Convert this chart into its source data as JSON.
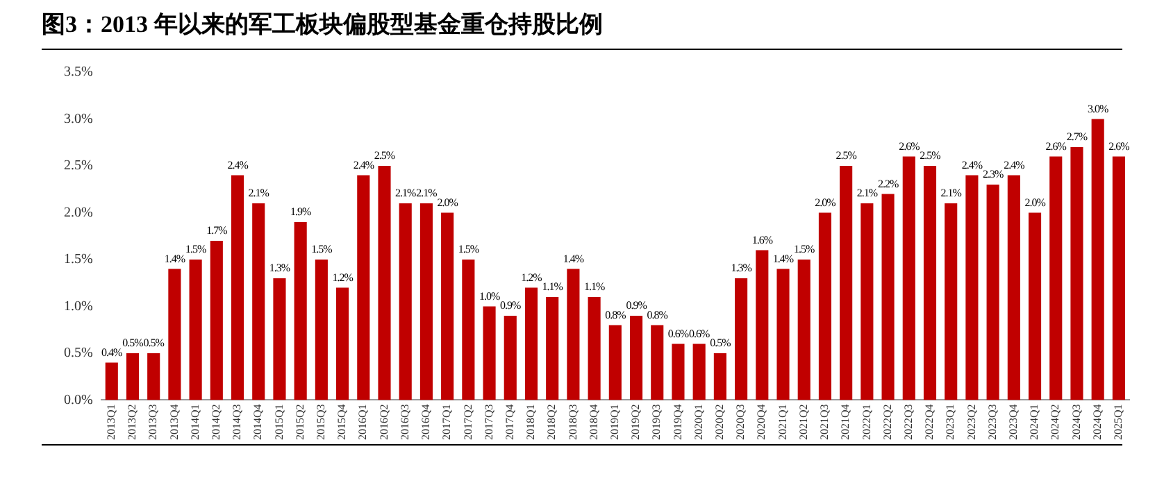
{
  "chart_data": {
    "type": "bar",
    "title": "图3：2013 年以来的军工板块偏股型基金重仓持股比例",
    "categories": [
      "2013Q1",
      "2013Q2",
      "2013Q3",
      "2013Q4",
      "2014Q1",
      "2014Q2",
      "2014Q3",
      "2014Q4",
      "2015Q1",
      "2015Q2",
      "2015Q3",
      "2015Q4",
      "2016Q1",
      "2016Q2",
      "2016Q3",
      "2016Q4",
      "2017Q1",
      "2017Q2",
      "2017Q3",
      "2017Q4",
      "2018Q1",
      "2018Q2",
      "2018Q3",
      "2018Q4",
      "2019Q1",
      "2019Q2",
      "2019Q3",
      "2019Q4",
      "2020Q1",
      "2020Q2",
      "2020Q3",
      "2020Q4",
      "2021Q1",
      "2021Q2",
      "2021Q3",
      "2021Q4",
      "2022Q1",
      "2022Q2",
      "2022Q3",
      "2022Q4",
      "2023Q1",
      "2023Q2",
      "2023Q3",
      "2023Q4",
      "2024Q1",
      "2024Q2",
      "2024Q3",
      "2024Q4",
      "2025Q1"
    ],
    "values": [
      0.4,
      0.5,
      0.5,
      1.4,
      1.5,
      1.7,
      2.4,
      2.1,
      1.3,
      1.9,
      1.5,
      1.2,
      2.4,
      2.5,
      2.1,
      2.1,
      2.0,
      1.5,
      1.0,
      0.9,
      1.2,
      1.1,
      1.4,
      1.1,
      0.8,
      0.9,
      0.8,
      0.6,
      0.6,
      0.5,
      1.3,
      1.6,
      1.4,
      1.5,
      2.0,
      2.5,
      2.1,
      2.2,
      2.6,
      2.5,
      2.1,
      2.4,
      2.3,
      2.4,
      2.0,
      2.6,
      2.7,
      3.0,
      2.6
    ],
    "value_labels": [
      "0.4%",
      "0.5%",
      "0.5%",
      "1.4%",
      "1.5%",
      "1.7%",
      "2.4%",
      "2.1%",
      "1.3%",
      "1.9%",
      "1.5%",
      "1.2%",
      "2.4%",
      "2.5%",
      "2.1%",
      "2.1%",
      "2.0%",
      "1.5%",
      "1.0%",
      "0.9%",
      "1.2%",
      "1.1%",
      "1.4%",
      "1.1%",
      "0.8%",
      "0.9%",
      "0.8%",
      "0.6%",
      "0.6%",
      "0.5%",
      "1.3%",
      "1.6%",
      "1.4%",
      "1.5%",
      "2.0%",
      "2.5%",
      "2.1%",
      "2.2%",
      "2.6%",
      "2.5%",
      "2.1%",
      "2.4%",
      "2.3%",
      "2.4%",
      "2.0%",
      "2.6%",
      "2.7%",
      "3.0%",
      "2.6%"
    ],
    "color": "#c00000",
    "ylim": [
      0,
      3.5
    ],
    "yticks": [
      {
        "value": 0,
        "label": "0.0%"
      },
      {
        "value": 0.5,
        "label": "0.5%"
      },
      {
        "value": 1,
        "label": "1.0%"
      },
      {
        "value": 1.5,
        "label": "1.5%"
      },
      {
        "value": 2,
        "label": "2.0%"
      },
      {
        "value": 2.5,
        "label": "2.5%"
      },
      {
        "value": 3,
        "label": "3.0%"
      },
      {
        "value": 3.5,
        "label": "3.5%"
      }
    ],
    "grid": false,
    "legend": false
  }
}
